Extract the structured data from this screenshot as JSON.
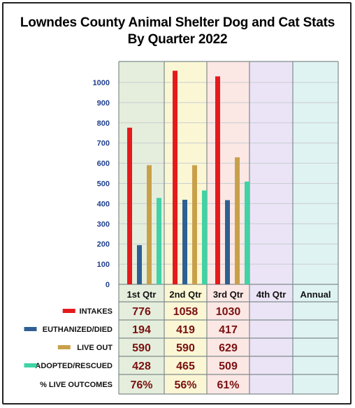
{
  "title_line1": "Lowndes County Animal Shelter Dog and Cat Stats",
  "title_line2": "By Quarter 2022",
  "chart_data": {
    "type": "bar",
    "title": "Lowndes County Animal Shelter Dog and Cat Stats By Quarter 2022",
    "categories": [
      "1st Qtr",
      "2nd Qtr",
      "3rd Qtr",
      "4th Qtr",
      "Annual"
    ],
    "ylim": [
      0,
      1100
    ],
    "yticks": [
      "0",
      "100",
      "200",
      "300",
      "400",
      "500",
      "600",
      "700",
      "800",
      "900",
      "1000"
    ],
    "grid": true,
    "series": [
      {
        "name": "INTAKES",
        "color": "#e41a1c",
        "values": [
          776,
          1058,
          1030,
          null,
          null
        ],
        "labels": [
          "776",
          "1058",
          "1030",
          "",
          ""
        ]
      },
      {
        "name": "EUTHANIZED/DIED",
        "color": "#2f5f93",
        "values": [
          194,
          419,
          417,
          null,
          null
        ],
        "labels": [
          "194",
          "419",
          "417",
          "",
          ""
        ]
      },
      {
        "name": "LIVE OUT",
        "color": "#c9a04a",
        "values": [
          590,
          590,
          629,
          null,
          null
        ],
        "labels": [
          "590",
          "590",
          "629",
          "",
          ""
        ]
      },
      {
        "name": "ADOPTED/RESCUED",
        "color": "#3fd3a6",
        "values": [
          428,
          465,
          509,
          null,
          null
        ],
        "labels": [
          "428",
          "465",
          "509",
          "",
          ""
        ]
      }
    ],
    "extra_rows": [
      {
        "name": "% LIVE OUTCOMES",
        "values": [
          "76%",
          "56%",
          "61%",
          "",
          ""
        ]
      }
    ],
    "column_colors": [
      "#e5eedc",
      "#fbf7d4",
      "#fbe7e4",
      "#ebe4f6",
      "#e0f3f3"
    ]
  }
}
